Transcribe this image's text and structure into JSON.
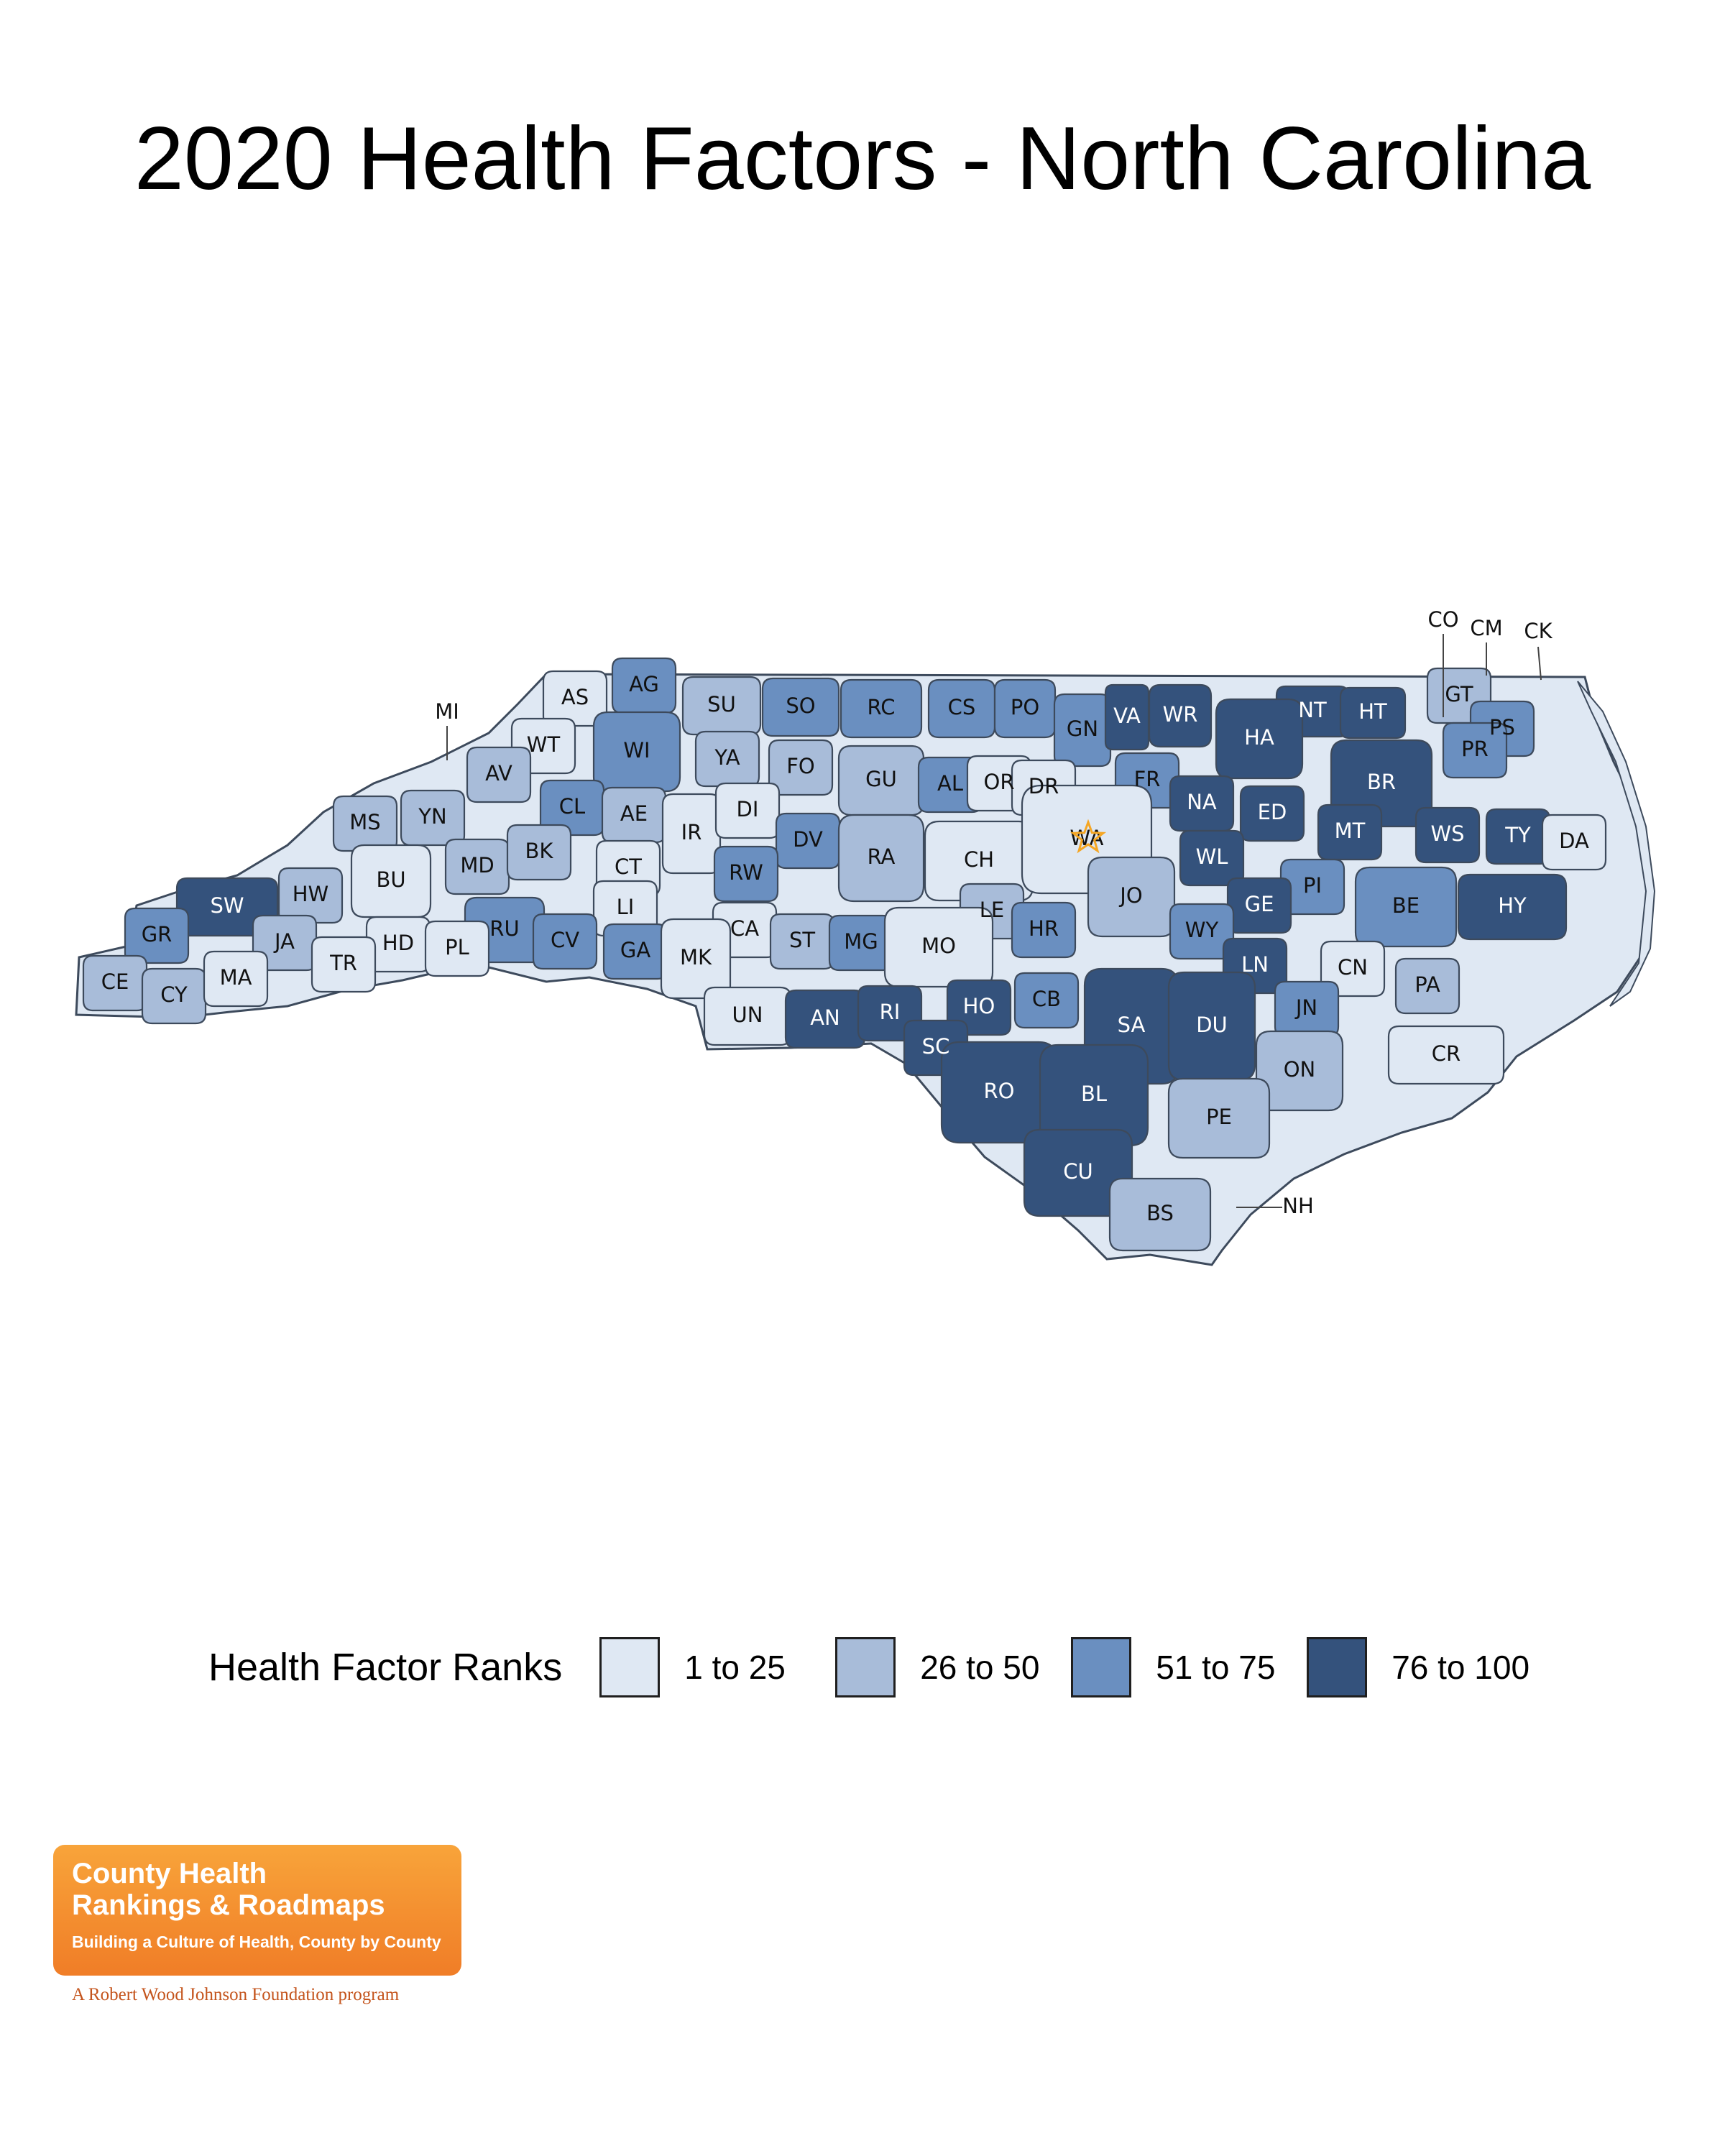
{
  "title": "2020 Health Factors - North Carolina",
  "legend": {
    "title": "Health Factor Ranks",
    "items": [
      {
        "label": "1 to 25",
        "color": "#dfe8f3"
      },
      {
        "label": "26 to 50",
        "color": "#a8bcd9"
      },
      {
        "label": "51 to 75",
        "color": "#6a8fc0"
      },
      {
        "label": "76 to 100",
        "color": "#34527c"
      }
    ]
  },
  "star": {
    "county": "WA",
    "color": "#f5a623",
    "icon": "star-icon"
  },
  "counties": [
    {
      "id": "CO",
      "cls": 2
    },
    {
      "id": "CM",
      "cls": 1
    },
    {
      "id": "CK",
      "cls": 1
    },
    {
      "id": "AS",
      "cls": 1
    },
    {
      "id": "AG",
      "cls": 3
    },
    {
      "id": "SU",
      "cls": 2
    },
    {
      "id": "SO",
      "cls": 3
    },
    {
      "id": "RC",
      "cls": 3
    },
    {
      "id": "CS",
      "cls": 3
    },
    {
      "id": "PO",
      "cls": 3
    },
    {
      "id": "GN",
      "cls": 3
    },
    {
      "id": "VA",
      "cls": 4
    },
    {
      "id": "WR",
      "cls": 4
    },
    {
      "id": "NT",
      "cls": 4
    },
    {
      "id": "HT",
      "cls": 4
    },
    {
      "id": "GT",
      "cls": 2
    },
    {
      "id": "PS",
      "cls": 3
    },
    {
      "id": "PR",
      "cls": 3
    },
    {
      "id": "HA",
      "cls": 4
    },
    {
      "id": "BR",
      "cls": 4
    },
    {
      "id": "MI",
      "cls": 2
    },
    {
      "id": "WT",
      "cls": 1
    },
    {
      "id": "WI",
      "cls": 3
    },
    {
      "id": "YA",
      "cls": 2
    },
    {
      "id": "FO",
      "cls": 2
    },
    {
      "id": "GU",
      "cls": 2
    },
    {
      "id": "AL",
      "cls": 3
    },
    {
      "id": "OR",
      "cls": 1
    },
    {
      "id": "DR",
      "cls": 1
    },
    {
      "id": "FR",
      "cls": 3
    },
    {
      "id": "NA",
      "cls": 4
    },
    {
      "id": "ED",
      "cls": 4
    },
    {
      "id": "MT",
      "cls": 4
    },
    {
      "id": "WS",
      "cls": 4
    },
    {
      "id": "TY",
      "cls": 4
    },
    {
      "id": "DA",
      "cls": 1
    },
    {
      "id": "AV",
      "cls": 2
    },
    {
      "id": "YN",
      "cls": 2
    },
    {
      "id": "MS",
      "cls": 2
    },
    {
      "id": "CL",
      "cls": 3
    },
    {
      "id": "AE",
      "cls": 2
    },
    {
      "id": "IR",
      "cls": 1
    },
    {
      "id": "DI",
      "cls": 1
    },
    {
      "id": "DV",
      "cls": 3
    },
    {
      "id": "RA",
      "cls": 2
    },
    {
      "id": "CH",
      "cls": 1
    },
    {
      "id": "WA",
      "cls": 1
    },
    {
      "id": "WL",
      "cls": 4
    },
    {
      "id": "PI",
      "cls": 3
    },
    {
      "id": "HY",
      "cls": 4
    },
    {
      "id": "BU",
      "cls": 1
    },
    {
      "id": "MD",
      "cls": 2
    },
    {
      "id": "BK",
      "cls": 2
    },
    {
      "id": "CT",
      "cls": 1
    },
    {
      "id": "RW",
      "cls": 3
    },
    {
      "id": "JO",
      "cls": 2
    },
    {
      "id": "SW",
      "cls": 4
    },
    {
      "id": "HW",
      "cls": 2
    },
    {
      "id": "LI",
      "cls": 1
    },
    {
      "id": "CA",
      "cls": 1
    },
    {
      "id": "LE",
      "cls": 2
    },
    {
      "id": "HR",
      "cls": 3
    },
    {
      "id": "GE",
      "cls": 4
    },
    {
      "id": "BE",
      "cls": 3
    },
    {
      "id": "GR",
      "cls": 3
    },
    {
      "id": "JA",
      "cls": 2
    },
    {
      "id": "HD",
      "cls": 1
    },
    {
      "id": "RU",
      "cls": 3
    },
    {
      "id": "CV",
      "cls": 3
    },
    {
      "id": "GA",
      "cls": 3
    },
    {
      "id": "MK",
      "cls": 1
    },
    {
      "id": "ST",
      "cls": 2
    },
    {
      "id": "MG",
      "cls": 3
    },
    {
      "id": "MO",
      "cls": 1
    },
    {
      "id": "WY",
      "cls": 3
    },
    {
      "id": "CE",
      "cls": 2
    },
    {
      "id": "CY",
      "cls": 2
    },
    {
      "id": "MA",
      "cls": 1
    },
    {
      "id": "TR",
      "cls": 1
    },
    {
      "id": "PL",
      "cls": 1
    },
    {
      "id": "LN",
      "cls": 4
    },
    {
      "id": "CN",
      "cls": 1
    },
    {
      "id": "PA",
      "cls": 2
    },
    {
      "id": "UN",
      "cls": 1
    },
    {
      "id": "AN",
      "cls": 4
    },
    {
      "id": "RI",
      "cls": 4
    },
    {
      "id": "HO",
      "cls": 4
    },
    {
      "id": "CB",
      "cls": 3
    },
    {
      "id": "SA",
      "cls": 4
    },
    {
      "id": "DU",
      "cls": 4
    },
    {
      "id": "JN",
      "cls": 3
    },
    {
      "id": "SC",
      "cls": 4
    },
    {
      "id": "ON",
      "cls": 2
    },
    {
      "id": "CR",
      "cls": 1
    },
    {
      "id": "RO",
      "cls": 4
    },
    {
      "id": "BL",
      "cls": 4
    },
    {
      "id": "PE",
      "cls": 2
    },
    {
      "id": "CU",
      "cls": 4
    },
    {
      "id": "BS",
      "cls": 2
    },
    {
      "id": "NH",
      "cls": 1
    }
  ],
  "logo": {
    "line1": "County Health",
    "line2": "Rankings & Roadmaps",
    "tagline": "Building a Culture of Health, County by County",
    "footer": "A Robert Wood Johnson Foundation program"
  }
}
